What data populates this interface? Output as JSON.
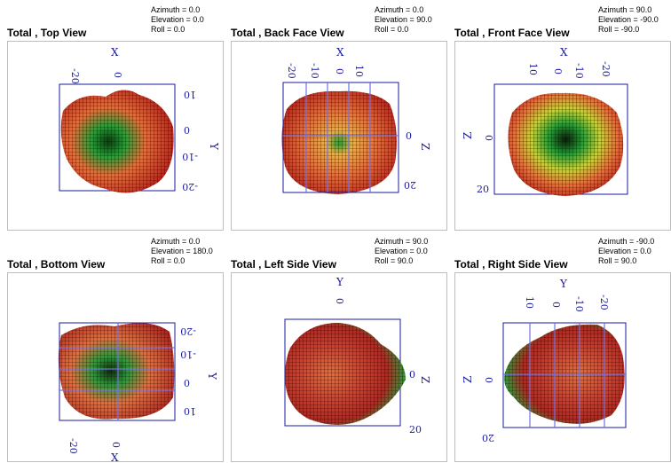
{
  "panels": [
    {
      "title": "Total , Top View",
      "azimuth": "Azimuth = 0.0",
      "elevation": "Elevation = 0.0",
      "roll": "Roll = 0.0",
      "axis_a": "X",
      "axis_b": "Y",
      "ticks_a": [
        "-20",
        "0"
      ],
      "ticks_b": [
        "10",
        "0",
        "-10",
        "-20"
      ]
    },
    {
      "title": "Total , Back Face View",
      "azimuth": "Azimuth = 0.0",
      "elevation": "Elevation = 90.0",
      "roll": "Roll = 0.0",
      "axis_a": "X",
      "axis_b": "Z",
      "ticks_a": [
        "-20",
        "-10",
        "0",
        "10"
      ],
      "ticks_b": [
        "0",
        "20"
      ]
    },
    {
      "title": "Total , Front Face View",
      "azimuth": "Azimuth = 90.0",
      "elevation": "Elevation = -90.0",
      "roll": "Roll = -90.0",
      "axis_a": "X",
      "axis_b": "Z",
      "ticks_a": [
        "10",
        "0",
        "-10",
        "-20"
      ],
      "ticks_b": [
        "0",
        "20"
      ]
    },
    {
      "title": "Total , Bottom View",
      "azimuth": "Azimuth = 0.0",
      "elevation": "Elevation = 180.0",
      "roll": "Roll = 0.0",
      "axis_a": "X",
      "axis_b": "Y",
      "ticks_a": [
        "-20",
        "0"
      ],
      "ticks_b": [
        "-20",
        "-10",
        "0",
        "10"
      ]
    },
    {
      "title": "Total , Left Side View",
      "azimuth": "Azimuth = 90.0",
      "elevation": "Elevation = 0.0",
      "roll": "Roll = 90.0",
      "axis_a": "Y",
      "axis_b": "Z",
      "ticks_a": [
        "0"
      ],
      "ticks_b": [
        "0",
        "20"
      ]
    },
    {
      "title": "Total , Right Side View",
      "azimuth": "Azimuth = -90.0",
      "elevation": "Elevation = 0.0",
      "roll": "Roll = 90.0",
      "axis_a": "Y",
      "axis_b": "Z",
      "ticks_a": [
        "10",
        "0",
        "-10",
        "-20"
      ],
      "ticks_b": [
        "0",
        "20"
      ]
    }
  ],
  "colors": {
    "axis": "#1a1aa0",
    "grid": "#7070e0",
    "hot": "#c0302a",
    "mid": "#e07040",
    "cool": "#2c9a3a",
    "mesh": "#1a0a06"
  }
}
